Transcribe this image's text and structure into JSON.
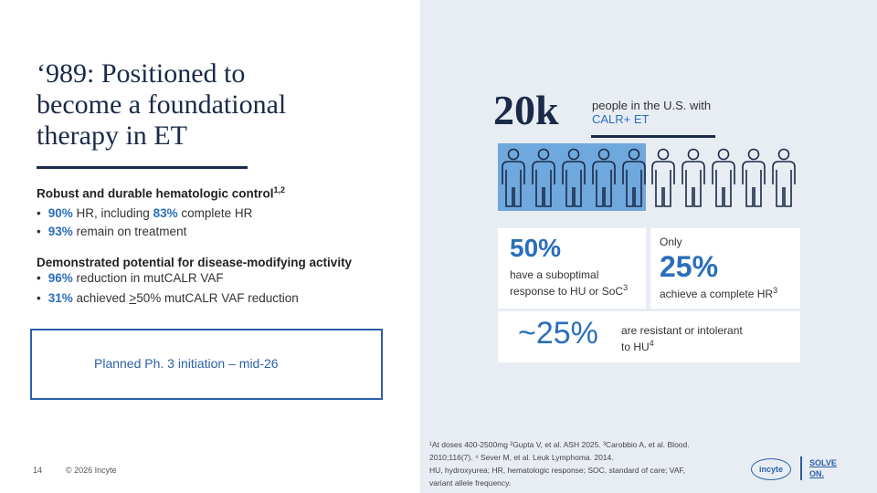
{
  "left": {
    "title": [
      "‘989: Positioned to",
      "become a foundational",
      "therapy in ET"
    ],
    "section1": {
      "heading": "Robust and durable hematologic control",
      "sup": "1,2",
      "bullets": [
        [
          "90%",
          " HR, including ",
          "83%",
          " complete HR"
        ],
        [
          "93%",
          " remain on treatment"
        ]
      ]
    },
    "section2": {
      "heading": "Demonstrated potential for disease-modifying activity",
      "bullets": [
        [
          "96%",
          " reduction in mutCALR VAF"
        ],
        [
          "31%",
          " achieved ",
          ">",
          "50% mutCALR VAF reduction"
        ]
      ]
    },
    "callout": "Planned Ph. 3 initiation – mid-26",
    "page_number": "14",
    "copyright": "© 2026 Incyte"
  },
  "right": {
    "headline": {
      "number": "20k",
      "text": "people in the U.S. with",
      "highlight": "CALR+ ET"
    },
    "stat1": {
      "value": "50%",
      "text": [
        "have a suboptimal",
        "response to HU or SoC"
      ],
      "sup": "3"
    },
    "stat2": {
      "prefix": "Only",
      "value": "25%",
      "text": "achieve a complete HR",
      "sup": "3"
    },
    "stat3": {
      "value": "~25%",
      "text": [
        "are resistant or intolerant",
        "to HU"
      ],
      "sup": "4"
    },
    "footnotes": [
      "¹At doses 400-2500mg ²Gupta V, et al. ASH 2025. ³Carobbio A, et al. Blood.",
      "2010;116(7). ⁴ Sever M, et al. Leuk Lymphoma. 2014.",
      "HU, hydroxyurea; HR, hematologic response; SOC, standard of care; VAF,",
      "variant allele frequency."
    ],
    "logo": "incyte",
    "tagline": [
      "SOLVE",
      "ON."
    ]
  }
}
